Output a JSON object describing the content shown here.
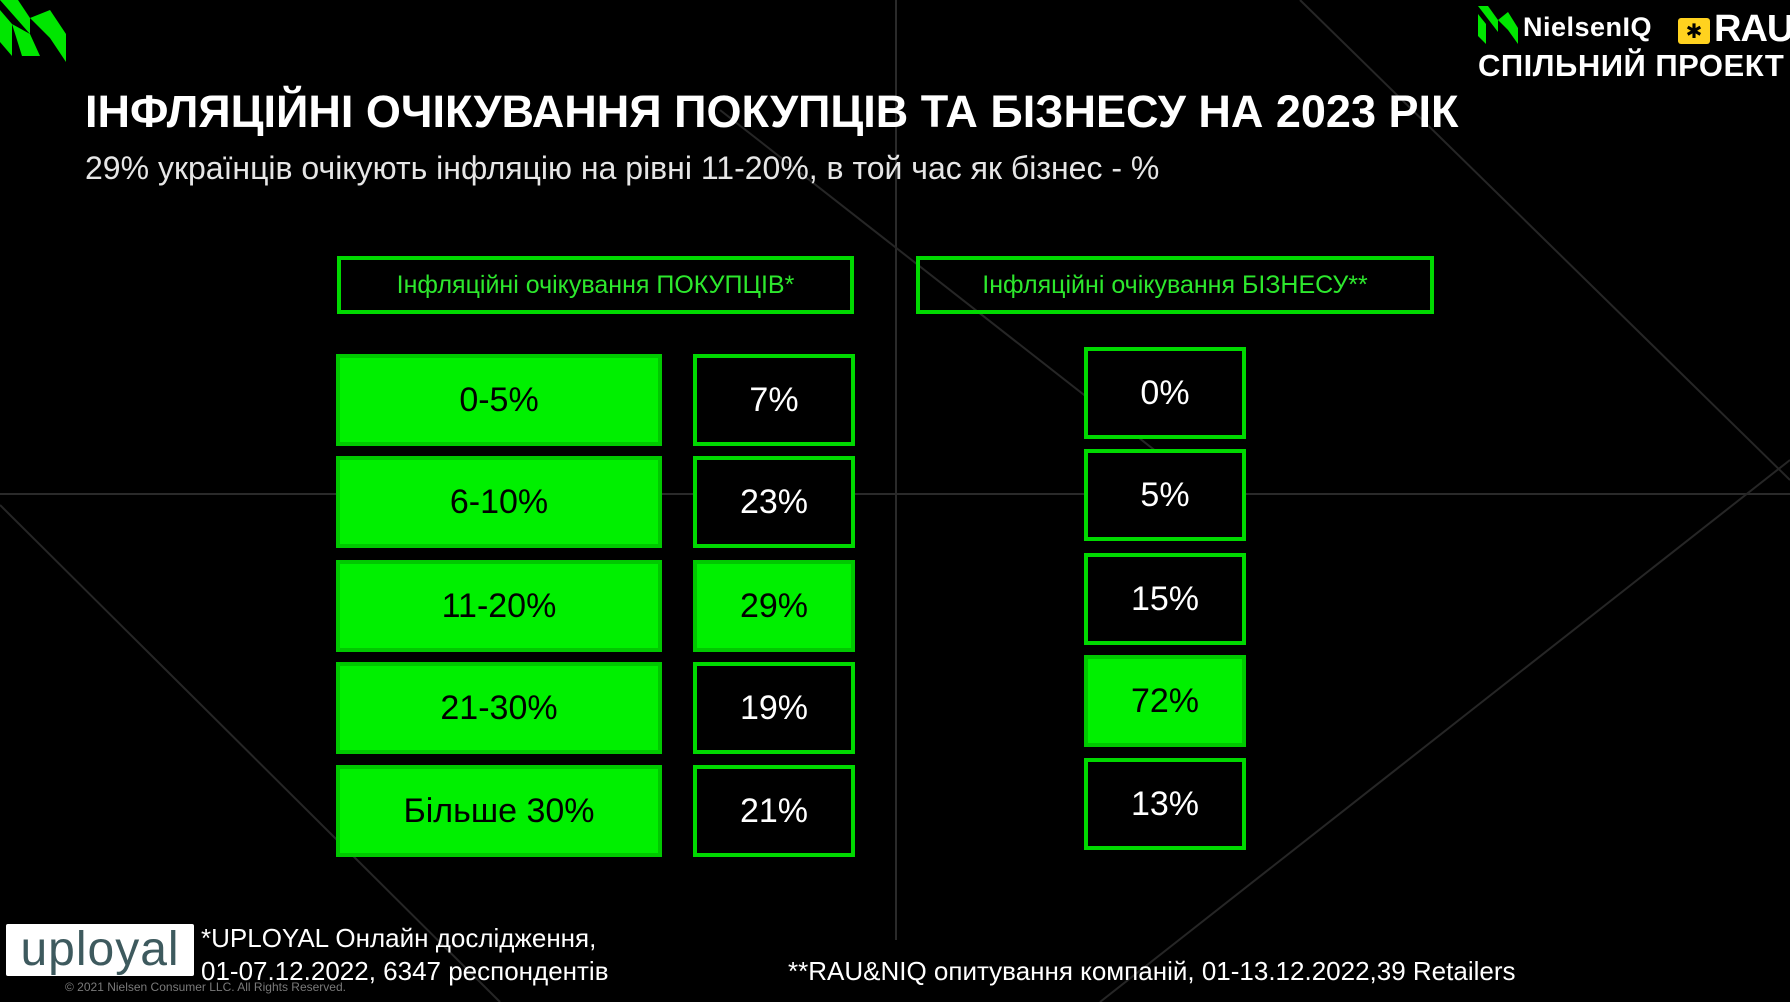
{
  "header": {
    "title": "ІНФЛЯЦІЙНІ ОЧІКУВАННЯ ПОКУПЦІВ ТА БІЗНЕСУ НА 2023 РІК",
    "subtitle": "29% українців очікують інфляцію на рівні 11-20%, в той час як бізнес - %"
  },
  "brand": {
    "niq_name": "NielsenIQ",
    "rau_name": "RAU",
    "joint_project": "СПІЛЬНИЙ ПРОЕКТ"
  },
  "chart_data": {
    "type": "table",
    "title": "ІНФЛЯЦІЙНІ ОЧІКУВАННЯ ПОКУПЦІВ ТА БІЗНЕСУ НА 2023 РІК",
    "categories": [
      "0-5%",
      "6-10%",
      "11-20%",
      "21-30%",
      "Більше 30%"
    ],
    "series": [
      {
        "name": "Інфляційні очікування ПОКУПЦІВ*",
        "values": [
          7,
          23,
          29,
          19,
          21
        ],
        "labels": [
          "7%",
          "23%",
          "29%",
          "19%",
          "21%"
        ],
        "highlight_index": 2
      },
      {
        "name": "Інфляційні очікування БІЗНЕСУ**",
        "values": [
          0,
          5,
          15,
          72,
          13
        ],
        "labels": [
          "0%",
          "5%",
          "15%",
          "72%",
          "13%"
        ],
        "highlight_index": 3
      }
    ],
    "colors": {
      "highlight": "#00f000",
      "border": "#00d900",
      "header_text": "#2de82d",
      "background": "#000000"
    }
  },
  "footer": {
    "uployal_logo_text": "uployal",
    "note1_line1": "*UPLOYAL Онлайн дослідження,",
    "note1_line2": "01-07.12.2022, 6347 респондентів",
    "note2": "**RAU&NIQ опитування компаній, 01-13.12.2022,39 Retailers",
    "copyright": "© 2021 Nielsen Consumer LLC. All Rights Reserved."
  }
}
